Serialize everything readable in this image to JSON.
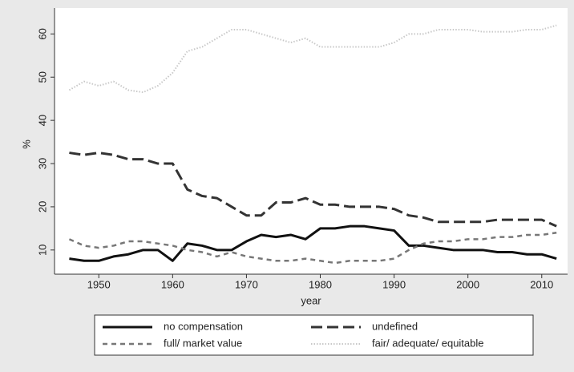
{
  "chart_data": {
    "type": "line",
    "xlabel": "year",
    "ylabel": "%",
    "x": [
      1946,
      1948,
      1950,
      1952,
      1954,
      1956,
      1958,
      1960,
      1962,
      1964,
      1966,
      1968,
      1970,
      1972,
      1974,
      1976,
      1978,
      1980,
      1982,
      1984,
      1986,
      1988,
      1990,
      1992,
      1994,
      1996,
      1998,
      2000,
      2002,
      2004,
      2006,
      2008,
      2010,
      2012
    ],
    "xlim": [
      1944,
      2013.5
    ],
    "xticks": [
      1950,
      1960,
      1970,
      1980,
      1990,
      2000,
      2010
    ],
    "ylim": [
      4.4,
      66
    ],
    "yticks": [
      10,
      20,
      30,
      40,
      50,
      60
    ],
    "series": [
      {
        "name": "no compensation",
        "color": "#111111",
        "dash": "solid",
        "values": [
          8,
          7.5,
          7.5,
          8.5,
          9,
          10,
          10,
          7.5,
          11.5,
          11,
          10,
          10,
          12,
          13.5,
          13,
          13.5,
          12.5,
          15,
          15,
          15.5,
          15.5,
          15,
          14.5,
          11,
          11,
          10.5,
          10,
          10,
          10,
          9.5,
          9.5,
          9,
          9,
          8
        ]
      },
      {
        "name": "undefined",
        "color": "#333333",
        "dash": "long",
        "values": [
          32.5,
          32,
          32.5,
          32,
          31,
          31,
          30,
          30,
          24,
          22.5,
          22,
          20,
          18,
          18,
          21,
          21,
          22,
          20.5,
          20.5,
          20,
          20,
          20,
          19.5,
          18,
          17.5,
          16.5,
          16.5,
          16.5,
          16.5,
          17,
          17,
          17,
          17,
          15.5
        ]
      },
      {
        "name": "full/ market value",
        "color": "#777777",
        "dash": "short",
        "values": [
          12.5,
          11,
          10.5,
          11,
          12,
          12,
          11.5,
          11,
          10,
          9.5,
          8.5,
          9.5,
          8.5,
          8,
          7.5,
          7.5,
          8,
          7.5,
          7,
          7.5,
          7.5,
          7.5,
          8,
          10,
          11.5,
          12,
          12,
          12.5,
          12.5,
          13,
          13,
          13.5,
          13.5,
          14
        ]
      },
      {
        "name": "fair/ adequate/ equitable",
        "color": "#c8c8c8",
        "dash": "dot",
        "values": [
          47,
          49,
          48,
          49,
          47,
          46.5,
          48,
          51,
          56,
          57,
          59,
          61,
          61,
          60,
          59,
          58,
          59,
          57,
          57,
          57,
          57,
          57,
          58,
          60,
          60,
          61,
          61,
          61,
          60.5,
          60.5,
          60.5,
          61,
          61,
          62
        ]
      }
    ]
  }
}
